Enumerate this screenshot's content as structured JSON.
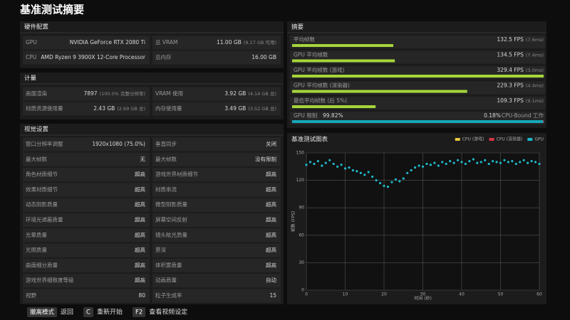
{
  "title": "基准测试摘要",
  "hardware": {
    "heading": "硬件配置",
    "rows": [
      [
        {
          "label": "GPU",
          "value": "NVIDIA GeForce RTX 2080 Ti"
        },
        {
          "label": "总 VRAM",
          "value": "11.00 GB",
          "note": "(9.17 GB 可用)"
        }
      ],
      [
        {
          "label": "CPU",
          "value": "AMD Ryzen 9 3900X 12-Core Processor"
        },
        {
          "label": "总内存",
          "value": "16.00 GB"
        }
      ]
    ]
  },
  "metrics": {
    "heading": "计量",
    "rows": [
      [
        {
          "label": "画面渲染",
          "value": "7897",
          "note": "(100.0% 完整分辨率)"
        },
        {
          "label": "VRAM 使用",
          "value": "3.92 GB",
          "note": "(4.14 GB 总)"
        }
      ],
      [
        {
          "label": "材质资源使用量",
          "value": "2.43 GB",
          "note": "(2.69 GB 总)"
        },
        {
          "label": "内存使用量",
          "value": "3.49 GB",
          "note": "(3.52 GB 总)"
        }
      ]
    ]
  },
  "visual": {
    "heading": "视觉设置",
    "rows": [
      [
        {
          "label": "窗口分辨率调整",
          "value": "1920x1080 (75.0%)"
        },
        {
          "label": "垂直同步",
          "value": "关闭"
        }
      ],
      [
        {
          "label": "最大帧数",
          "value": "无"
        },
        {
          "label": "最大帧数",
          "value": "没有限制"
        }
      ],
      [
        {
          "label": "角色材质细节",
          "value": "超高"
        },
        {
          "label": "游戏世界材质细节",
          "value": "超高"
        }
      ],
      [
        {
          "label": "效果材质细节",
          "value": "超高"
        },
        {
          "label": "材质串流",
          "value": "超高"
        }
      ],
      [
        {
          "label": "动态阴影质量",
          "value": "超高"
        },
        {
          "label": "微型阴影质量",
          "value": "超高"
        }
      ],
      [
        {
          "label": "环境光遮蔽质量",
          "value": "超高"
        },
        {
          "label": "屏幕空间反射",
          "value": "超高"
        }
      ],
      [
        {
          "label": "光晕质量",
          "value": "超高"
        },
        {
          "label": "镜头眩光质量",
          "value": "超高"
        }
      ],
      [
        {
          "label": "光照质量",
          "value": "超高"
        },
        {
          "label": "景深",
          "value": "超高"
        }
      ],
      [
        {
          "label": "曲面细分质量",
          "value": "超高"
        },
        {
          "label": "体积雾质量",
          "value": "超高"
        }
      ],
      [
        {
          "label": "游戏世界细致度等级",
          "value": "超高"
        },
        {
          "label": "动画质量",
          "value": "自动"
        }
      ],
      [
        {
          "label": "视野",
          "value": "80"
        },
        {
          "label": "粒子生成率",
          "value": "15"
        }
      ]
    ]
  },
  "summary": {
    "heading": "摘要",
    "type": "bar",
    "color": "#a5d63a",
    "categories": [
      "平均帧数",
      "GPU 平均帧数",
      "GPU 平均帧数 (游戏)",
      "GPU 平均帧数 (渲染器)",
      "最低平均帧数 (后 5%)"
    ],
    "values": [
      132.5,
      134.5,
      329.4,
      229.3,
      109.3
    ],
    "value_labels": [
      "132.5 FPS",
      "134.5 FPS",
      "329.4 FPS",
      "229.3 FPS",
      "109.3 FPS"
    ],
    "notes": [
      "(7.6ms)",
      "(7.4ms)",
      "(3.0ms)",
      "(4.4ms)",
      "(9.1ms)"
    ],
    "gpu_bound": {
      "label": "GPU 限制",
      "value": 99.82,
      "value_label": "99.82%",
      "color": "#17a8b8",
      "other_value": 0.18,
      "other_label": "0.18%",
      "other_text": "CPU-Bound 工作"
    }
  },
  "chart_data": {
    "type": "scatter",
    "title": "基准测试图表",
    "xlabel": "时间 (秒)",
    "ylabel": "帧数 (FPS)",
    "x": [
      0,
      1,
      2,
      3,
      4,
      5,
      6,
      7,
      8,
      9,
      10,
      11,
      12,
      13,
      14,
      15,
      16,
      17,
      18,
      19,
      20,
      21,
      22,
      23,
      24,
      25,
      26,
      27,
      28,
      29,
      30,
      31,
      32,
      33,
      34,
      35,
      36,
      37,
      38,
      39,
      40,
      41,
      42,
      43,
      44,
      45,
      46,
      47,
      48,
      49,
      50,
      51,
      52,
      53,
      54,
      55,
      56,
      57,
      58,
      59,
      60
    ],
    "series": [
      {
        "name": "CPU (游戏)",
        "color": "#e8c840",
        "values": [
          null,
          null,
          null,
          null,
          null,
          null,
          null,
          null,
          null,
          null,
          null,
          null,
          null,
          null,
          null,
          null,
          null,
          null,
          null,
          null,
          null,
          null,
          null,
          null,
          null,
          null,
          null,
          null,
          null,
          null,
          null,
          null,
          null,
          null,
          null,
          null,
          null,
          null,
          null,
          null,
          null,
          null,
          null,
          null,
          null,
          null,
          null,
          null,
          null,
          null,
          null,
          null,
          null,
          null,
          null,
          null,
          null,
          null,
          null,
          null,
          null
        ]
      },
      {
        "name": "CPU (渲染器)",
        "color": "#d8344a",
        "values": [
          null,
          null,
          null,
          null,
          null,
          null,
          null,
          null,
          null,
          null,
          null,
          null,
          null,
          null,
          null,
          null,
          null,
          null,
          null,
          null,
          null,
          null,
          null,
          null,
          null,
          null,
          null,
          null,
          null,
          null,
          null,
          null,
          null,
          null,
          null,
          null,
          null,
          null,
          null,
          null,
          null,
          null,
          null,
          null,
          null,
          null,
          null,
          null,
          null,
          null,
          null,
          null,
          null,
          null,
          null,
          null,
          null,
          null,
          null,
          null,
          null
        ]
      },
      {
        "name": "GPU",
        "color": "#1fb8c8",
        "values": [
          137,
          140,
          138,
          141,
          136,
          139,
          142,
          138,
          135,
          137,
          133,
          134,
          131,
          130,
          128,
          126,
          129,
          124,
          120,
          117,
          114,
          113,
          118,
          121,
          119,
          122,
          128,
          131,
          134,
          136,
          135,
          138,
          137,
          139,
          136,
          140,
          138,
          141,
          139,
          142,
          140,
          138,
          141,
          143,
          139,
          140,
          142,
          138,
          141,
          140,
          139,
          142,
          140,
          141,
          138,
          140,
          142,
          139,
          141,
          140,
          138
        ]
      }
    ],
    "xlim": [
      0,
      60
    ],
    "xticks": [
      0,
      10,
      20,
      30,
      40,
      50,
      60
    ],
    "ylim": [
      0,
      150
    ],
    "yticks": [
      0,
      30,
      60,
      90,
      120,
      150
    ],
    "grid": true
  },
  "footer": [
    {
      "key": "撤离模式",
      "label": "返回"
    },
    {
      "key": "C",
      "label": "重新开始"
    },
    {
      "key": "F2",
      "label": "查看视频设定"
    }
  ]
}
